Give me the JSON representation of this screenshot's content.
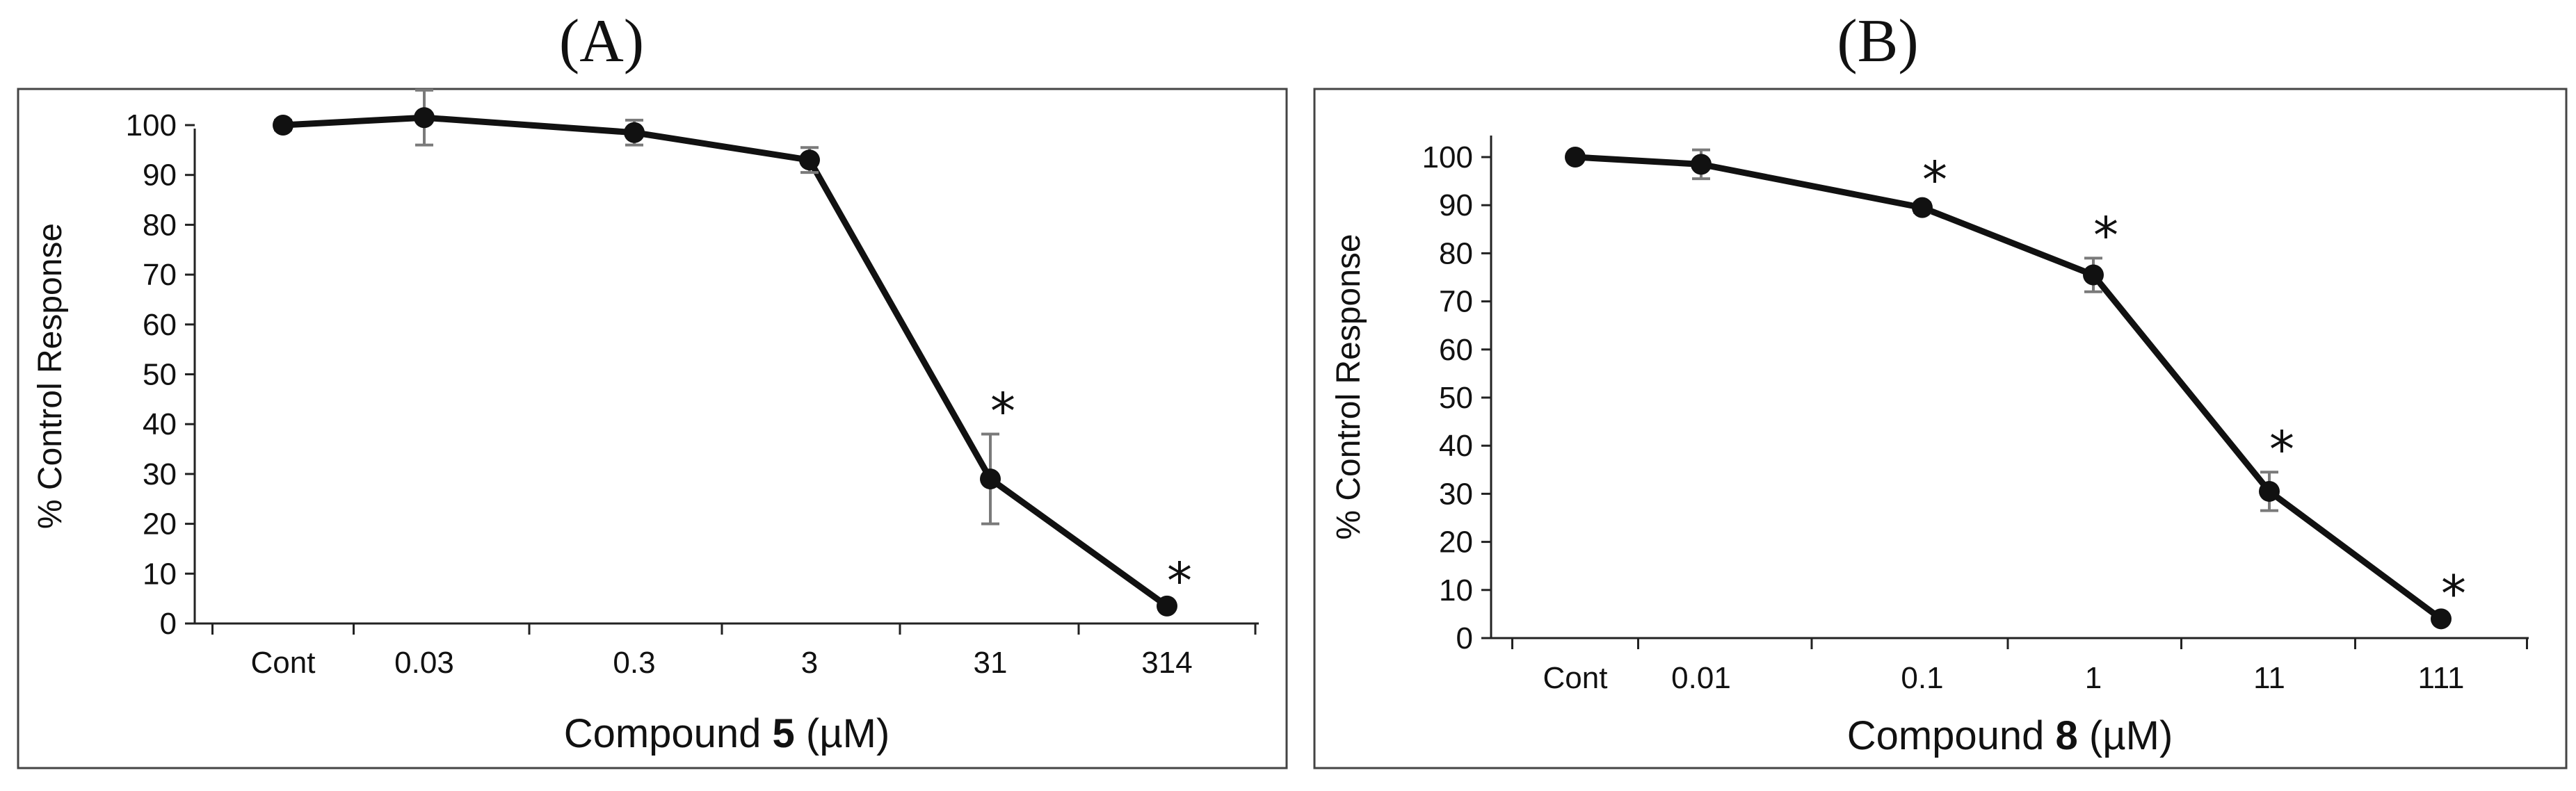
{
  "chart_data": [
    {
      "type": "line",
      "panel_label": "(A)",
      "categories": [
        "Cont",
        "0.03",
        "0.3",
        "3",
        "31",
        "314"
      ],
      "series": [
        {
          "values": [
            100,
            101.5,
            98.5,
            93,
            29,
            3.5
          ]
        }
      ],
      "error_bars": [
        1.0,
        5.5,
        2.5,
        2.5,
        9.0,
        0.5
      ],
      "significance": [
        "",
        "",
        "",
        "",
        "*",
        "*"
      ],
      "xlabel": {
        "prefix": "Compound ",
        "compound": "5",
        "suffix": " (µM)"
      },
      "ylabel": "% Control Response",
      "yticks": [
        "0",
        "10",
        "20",
        "30",
        "40",
        "50",
        "60",
        "70",
        "80",
        "90",
        "100"
      ],
      "ylim": [
        0,
        110
      ],
      "grid": false,
      "colors": {
        "line": "#111111",
        "marker": "#111111",
        "error_bar": "#7a7a7a"
      }
    },
    {
      "type": "line",
      "panel_label": "(B)",
      "categories": [
        "Cont",
        "0.01",
        "0.1",
        "1",
        "11",
        "111"
      ],
      "series": [
        {
          "values": [
            100,
            98.5,
            89.5,
            75.5,
            30.5,
            4
          ]
        }
      ],
      "error_bars": [
        0.5,
        3.0,
        1.0,
        3.5,
        4.0,
        0.5
      ],
      "significance": [
        "",
        "",
        "*",
        "*",
        "*",
        "*"
      ],
      "xlabel": {
        "prefix": "Compound ",
        "compound": "8",
        "suffix": " (µM)"
      },
      "ylabel": "% Control Response",
      "yticks": [
        "0",
        "10",
        "20",
        "30",
        "40",
        "50",
        "60",
        "70",
        "80",
        "90",
        "100"
      ],
      "ylim": [
        0,
        100
      ],
      "grid": false,
      "colors": {
        "line": "#111111",
        "marker": "#111111",
        "error_bar": "#7a7a7a"
      }
    }
  ]
}
